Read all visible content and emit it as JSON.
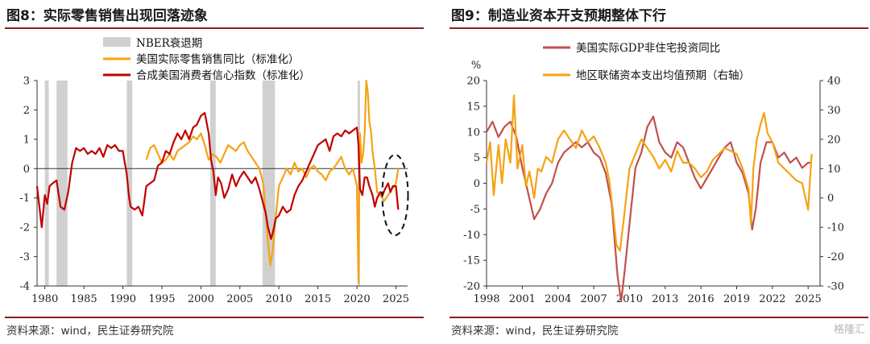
{
  "left": {
    "title": "图8：实际零售销售出现回落迹象",
    "source": "资料来源：wind，民生证券研究院",
    "chart_data": {
      "type": "line",
      "title": "图8：实际零售销售出现回落迹象",
      "xlim": [
        1979,
        2026.5
      ],
      "ylim": [
        -4,
        3
      ],
      "x_ticks": [
        "1980",
        "1985",
        "1990",
        "1995",
        "2000",
        "2005",
        "2010",
        "2015",
        "2020",
        "2025"
      ],
      "y_ticks": [
        "3",
        "2",
        "1",
        "0",
        "-1",
        "-2",
        "-3",
        "-4"
      ],
      "legend_position": "top-center",
      "grid": false,
      "recessions": {
        "name": "NBER衰退期",
        "color": "#d0d0d0",
        "periods": [
          [
            1980.0,
            1980.5
          ],
          [
            1981.5,
            1982.9
          ],
          [
            1990.5,
            1991.2
          ],
          [
            2001.2,
            2001.9
          ],
          [
            2007.9,
            2009.5
          ],
          [
            2020.1,
            2020.4
          ]
        ]
      },
      "series": [
        {
          "name": "美国实际零售销售同比（标准化）",
          "color": "#f5a312",
          "x": [
            1993,
            1993.5,
            1994,
            1994.5,
            1995,
            1995.5,
            1996,
            1996.5,
            1997,
            1997.5,
            1998,
            1998.5,
            1999,
            1999.5,
            2000,
            2000.5,
            2001,
            2001.5,
            2002,
            2002.5,
            2003,
            2003.5,
            2004,
            2004.5,
            2005,
            2005.5,
            2006,
            2006.5,
            2007,
            2007.5,
            2008,
            2008.3,
            2008.6,
            2008.9,
            2009.2,
            2009.5,
            2010,
            2010.5,
            2011,
            2011.5,
            2012,
            2012.5,
            2013,
            2013.5,
            2014,
            2014.5,
            2015,
            2015.5,
            2016,
            2016.5,
            2017,
            2017.5,
            2018,
            2018.5,
            2019,
            2019.5,
            2020,
            2020.2,
            2020.3,
            2020.4,
            2020.6,
            2020.8,
            2021,
            2021.2,
            2021.4,
            2021.6,
            2021.8,
            2022,
            2022.3,
            2022.6,
            2023,
            2023.5,
            2024,
            2024.5,
            2025,
            2025.3
          ],
          "y": [
            0.3,
            0.7,
            0.8,
            0.5,
            0.2,
            0.3,
            0.5,
            0.3,
            0.6,
            0.7,
            0.8,
            0.9,
            1.1,
            1.0,
            1.2,
            0.8,
            0.3,
            0.5,
            0.4,
            0.2,
            0.5,
            0.8,
            0.7,
            0.6,
            0.8,
            0.9,
            0.6,
            0.4,
            0.2,
            0.0,
            -0.5,
            -1.5,
            -2.5,
            -3.3,
            -2.8,
            -1.9,
            -0.6,
            -0.3,
            0.0,
            -0.2,
            0.2,
            -0.1,
            0.0,
            -0.3,
            0.0,
            0.1,
            -0.1,
            -0.2,
            -0.4,
            -0.1,
            0.0,
            0.2,
            0.4,
            0.0,
            -0.2,
            0.0,
            -0.6,
            -3.9,
            -0.5,
            1.2,
            0.2,
            0.5,
            1.2,
            3.0,
            2.6,
            1.6,
            1.3,
            0.6,
            0.0,
            -0.8,
            -0.9,
            -1.1,
            -0.9,
            -0.7,
            -0.5,
            0.0
          ]
        },
        {
          "name": "合成美国消费者信心指数（标准化）",
          "color": "#c00000",
          "x": [
            1979,
            1979.3,
            1979.6,
            1980,
            1980.3,
            1980.6,
            1981,
            1981.5,
            1982,
            1982.5,
            1983,
            1983.5,
            1984,
            1984.5,
            1985,
            1985.5,
            1986,
            1986.5,
            1987,
            1987.5,
            1988,
            1988.5,
            1989,
            1989.5,
            1990,
            1990.5,
            1990.8,
            1991,
            1991.5,
            1992,
            1992.5,
            1993,
            1993.5,
            1994,
            1994.5,
            1995,
            1995.5,
            1996,
            1996.5,
            1997,
            1997.5,
            1998,
            1998.5,
            1999,
            1999.5,
            2000,
            2000.5,
            2001,
            2001.3,
            2001.6,
            2001.9,
            2002.2,
            2002.6,
            2003,
            2003.5,
            2004,
            2004.5,
            2005,
            2005.5,
            2006,
            2006.5,
            2007,
            2007.5,
            2008,
            2008.3,
            2008.6,
            2009,
            2009.3,
            2009.6,
            2010,
            2010.5,
            2011,
            2011.5,
            2012,
            2012.5,
            2013,
            2013.5,
            2014,
            2014.5,
            2015,
            2015.5,
            2016,
            2016.5,
            2017,
            2017.5,
            2018,
            2018.5,
            2019,
            2019.5,
            2020,
            2020.2,
            2020.4,
            2020.7,
            2021,
            2021.3,
            2021.6,
            2022,
            2022.3,
            2022.6,
            2023,
            2023.3,
            2023.6,
            2024,
            2024.3,
            2024.6,
            2025,
            2025.3
          ],
          "y": [
            -0.6,
            -1.3,
            -2.0,
            -0.9,
            -1.2,
            -0.6,
            -0.5,
            -0.4,
            -1.3,
            -1.4,
            -0.8,
            0.2,
            0.7,
            0.6,
            0.7,
            0.5,
            0.6,
            0.5,
            0.7,
            0.4,
            0.8,
            0.7,
            0.8,
            0.6,
            0.6,
            -0.2,
            -1.0,
            -1.3,
            -1.4,
            -1.3,
            -1.6,
            -0.6,
            -0.5,
            -0.4,
            0.1,
            0.2,
            0.6,
            0.5,
            0.9,
            1.2,
            1.0,
            1.3,
            1.0,
            1.4,
            1.5,
            1.8,
            1.9,
            1.2,
            0.3,
            -0.1,
            -0.9,
            -0.3,
            -0.5,
            -1.0,
            -0.7,
            -0.2,
            -0.6,
            -0.3,
            -0.1,
            -0.3,
            -0.5,
            -0.3,
            -0.7,
            -1.2,
            -1.5,
            -2.0,
            -2.4,
            -2.1,
            -1.7,
            -1.6,
            -1.3,
            -1.5,
            -1.4,
            -0.9,
            -0.6,
            -0.4,
            -0.1,
            0.2,
            0.5,
            0.8,
            0.9,
            1.0,
            0.6,
            1.1,
            1.2,
            1.1,
            1.3,
            1.2,
            1.3,
            1.4,
            0.8,
            -0.7,
            -0.9,
            -0.3,
            -0.3,
            -0.6,
            -0.9,
            -1.3,
            -1.0,
            -0.8,
            -0.9,
            -0.7,
            -0.5,
            -0.8,
            -0.6,
            -0.6,
            -1.4
          ]
        }
      ],
      "annotation": "dashed-ellipse-around-2025"
    }
  },
  "right": {
    "title": "图9：制造业资本开支预期整体下行",
    "source": "资料来源：wind，民生证券研究院",
    "watermark": "格隆汇",
    "chart_data": {
      "type": "line",
      "title": "图9：制造业资本开支预期整体下行",
      "xlim": [
        1998,
        2026
      ],
      "ylim": [
        -20,
        20
      ],
      "y2lim": [
        -30,
        40
      ],
      "ylabel": "%",
      "x_ticks": [
        "1998",
        "2001",
        "2004",
        "2007",
        "2010",
        "2013",
        "2016",
        "2019",
        "2022",
        "2025"
      ],
      "y_ticks": [
        "20",
        "15",
        "10",
        "5",
        "0",
        "-5",
        "-10",
        "-15",
        "-20"
      ],
      "y2_ticks": [
        "40",
        "30",
        "20",
        "10",
        "0",
        "-10",
        "-20",
        "-30"
      ],
      "legend_position": "top-center",
      "grid": false,
      "series": [
        {
          "name": "美国实际GDP非住宅投资同比",
          "color": "#c0504d",
          "axis": "left",
          "x": [
            1998,
            1998.5,
            1999,
            1999.5,
            2000,
            2000.5,
            2001,
            2001.5,
            2002,
            2002.5,
            2003,
            2003.5,
            2004,
            2004.5,
            2005,
            2005.5,
            2006,
            2006.5,
            2007,
            2007.5,
            2008,
            2008.5,
            2009,
            2009.3,
            2009.6,
            2010,
            2010.5,
            2011,
            2011.5,
            2012,
            2012.5,
            2013,
            2013.5,
            2014,
            2014.5,
            2015,
            2015.5,
            2016,
            2016.5,
            2017,
            2017.5,
            2018,
            2018.5,
            2019,
            2019.5,
            2020,
            2020.3,
            2020.6,
            2021,
            2021.5,
            2022,
            2022.5,
            2023,
            2023.5,
            2024,
            2024.5,
            2025,
            2025.3
          ],
          "y": [
            10,
            12,
            9,
            11,
            12,
            9,
            3,
            -2,
            -7,
            -5,
            -2,
            0,
            4,
            6,
            7,
            8,
            7,
            8,
            6,
            5,
            2,
            -4,
            -18,
            -23,
            -17,
            -8,
            3,
            6,
            11,
            13,
            8,
            6,
            5,
            8,
            7,
            4,
            1,
            -1,
            1,
            3,
            5,
            7,
            8,
            4,
            2,
            -2,
            -9,
            -5,
            4,
            8,
            8,
            5,
            6,
            4,
            5,
            3,
            4,
            4
          ]
        },
        {
          "name": "地区联储资本支出均值预期（右轴）",
          "color": "#f5a312",
          "axis": "right",
          "x": [
            1998,
            1998.3,
            1998.6,
            1999,
            1999.3,
            1999.6,
            2000,
            2000.3,
            2000.6,
            2001,
            2001.3,
            2001.6,
            2002,
            2002.3,
            2002.6,
            2003,
            2003.5,
            2004,
            2004.5,
            2005,
            2005.5,
            2006,
            2006.5,
            2007,
            2007.5,
            2008,
            2008.3,
            2008.6,
            2008.9,
            2009.2,
            2009.5,
            2010,
            2010.5,
            2011,
            2011.5,
            2012,
            2012.5,
            2013,
            2013.5,
            2014,
            2014.5,
            2015,
            2015.5,
            2016,
            2016.5,
            2017,
            2017.5,
            2018,
            2018.5,
            2019,
            2019.5,
            2020,
            2020.2,
            2020.4,
            2020.7,
            2021,
            2021.3,
            2021.6,
            2022,
            2022.5,
            2023,
            2023.5,
            2024,
            2024.5,
            2025,
            2025.3
          ],
          "y": [
            12,
            19,
            1,
            18,
            5,
            20,
            12,
            35,
            10,
            18,
            4,
            9,
            0,
            10,
            9,
            14,
            12,
            20,
            23,
            20,
            17,
            23,
            19,
            21,
            17,
            12,
            6,
            -4,
            -16,
            -18,
            -8,
            10,
            15,
            20,
            17,
            14,
            10,
            13,
            9,
            16,
            12,
            12,
            10,
            7,
            9,
            13,
            15,
            17,
            16,
            15,
            10,
            3,
            -9,
            10,
            20,
            25,
            29,
            22,
            19,
            12,
            10,
            8,
            6,
            5,
            -4,
            15
          ]
        }
      ]
    }
  }
}
